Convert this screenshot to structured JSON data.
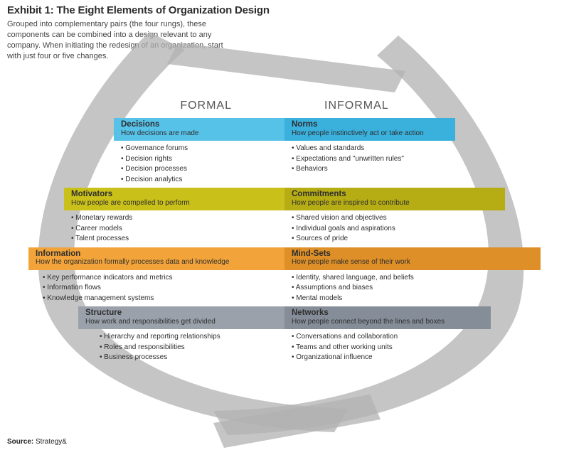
{
  "title": "Exhibit 1: The Eight Elements of Organization Design",
  "subtitle": "Grouped into complementary pairs (the four rungs), these components can be combined into a design relevant to any company. When initiating the redesign of an organization, start with just four or five changes.",
  "source_label": "Source:",
  "source_value": "Strategy&",
  "headers": {
    "formal": "FORMAL",
    "informal": "INFORMAL"
  },
  "ribbon_color": "#b2b2b2",
  "ribbon_opacity": 0.75,
  "background_color": "#ffffff",
  "text_color": "#2e2e2e",
  "rungs": [
    {
      "color_left": "#57c2e8",
      "color_right": "#3ab0dd",
      "left": {
        "title": "Decisions",
        "sub": "How decisions are made",
        "items": [
          "Governance forums",
          "Decision rights",
          "Decision processes",
          "Decision analytics"
        ]
      },
      "right": {
        "title": "Norms",
        "sub": "How people instinctively act or take action",
        "items": [
          "Values and standards",
          "Expectations and \"unwritten rules\"",
          "Behaviors"
        ]
      }
    },
    {
      "color_left": "#c9c01a",
      "color_right": "#b6ad15",
      "left": {
        "title": "Motivators",
        "sub": "How people are compelled to perform",
        "items": [
          "Monetary rewards",
          "Career models",
          "Talent processes"
        ]
      },
      "right": {
        "title": "Commitments",
        "sub": "How people are inspired to contribute",
        "items": [
          "Shared vision and objectives",
          "Individual goals and aspirations",
          "Sources of pride"
        ]
      }
    },
    {
      "color_left": "#f2a43a",
      "color_right": "#de8f27",
      "left": {
        "title": "Information",
        "sub": "How the organization formally processes data and knowledge",
        "items": [
          "Key performance indicators and metrics",
          "Information flows",
          "Knowledge management systems"
        ]
      },
      "right": {
        "title": "Mind-Sets",
        "sub": "How people make sense of their work",
        "items": [
          "Identity, shared language, and beliefs",
          "Assumptions and biases",
          "Mental models"
        ]
      }
    },
    {
      "color_left": "#9aa1ab",
      "color_right": "#858d98",
      "left": {
        "title": "Structure",
        "sub": "How work and responsibilities get divided",
        "items": [
          "Hierarchy and reporting relationships",
          "Roles and responsibilities",
          "Business processes"
        ]
      },
      "right": {
        "title": "Networks",
        "sub": "How people connect beyond the lines and boxes",
        "items": [
          "Conversations and collaboration",
          "Teams and other working units",
          "Organizational influence"
        ]
      }
    }
  ]
}
